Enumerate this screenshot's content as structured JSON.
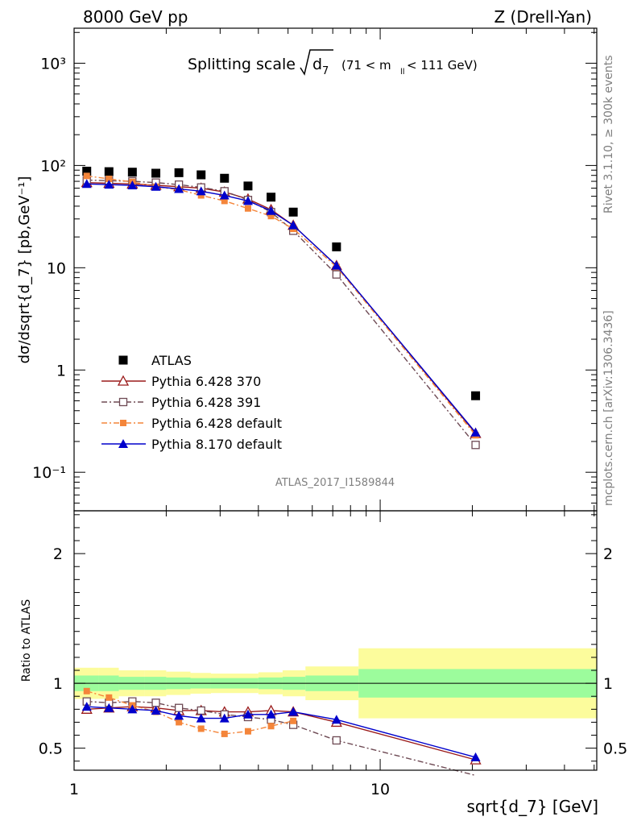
{
  "header": {
    "left": "8000 GeV pp",
    "right": "Z (Drell-Yan)",
    "title_main": "Splitting scale",
    "title_var": "d",
    "title_sub": "7",
    "title_range": "(71 < m",
    "title_range_sub": "ll",
    "title_range_end": " < 111 GeV)"
  },
  "side_texts": {
    "rivet": "Rivet 3.1.10, ≥ 300k events",
    "mcplots": "mcplots.cern.ch [arXiv:1306.3436]"
  },
  "watermark": "ATLAS_2017_I1589844",
  "colors": {
    "data": "#000000",
    "p370": "#9a1a1a",
    "p391": "#6e4a54",
    "pdef": "#f4853a",
    "p8": "#0000cc",
    "band_inner": "#9cfc9c",
    "band_outer": "#fcfc9c"
  },
  "chart_data": [
    {
      "type": "scatter",
      "panel": "main",
      "ylabel": "dσ/dsqrt{d_7} [pb,GeV⁻¹]",
      "yscale": "log",
      "xscale": "log",
      "xlim": [
        1,
        51
      ],
      "ylim": [
        0.042,
        2200
      ],
      "y_ticks": [
        "10⁻¹",
        "1",
        "10",
        "10²",
        "10³"
      ],
      "x": [
        1.1,
        1.3,
        1.55,
        1.85,
        2.2,
        2.6,
        3.1,
        3.7,
        4.4,
        5.2,
        7.2,
        20.5
      ],
      "series": [
        {
          "name": "ATLAS",
          "marker": "square-filled",
          "values": [
            88,
            87,
            86,
            84,
            85,
            81,
            75,
            63,
            49,
            35,
            16,
            0.56
          ]
        },
        {
          "name": "Pythia 6.428 370",
          "marker": "triangle-open",
          "values": [
            68,
            67,
            66,
            64,
            62,
            60,
            55,
            47,
            37,
            26,
            10.5,
            0.24
          ]
        },
        {
          "name": "Pythia 6.428 391",
          "marker": "square-open",
          "values": [
            72,
            71,
            70,
            68,
            65,
            61,
            56,
            46,
            35,
            23,
            8.6,
            0.185
          ]
        },
        {
          "name": "Pythia 6.428 default",
          "marker": "square-filled-small",
          "values": [
            79,
            74,
            69,
            62,
            58,
            51,
            45,
            38,
            32,
            24,
            10.2,
            0.23
          ]
        },
        {
          "name": "Pythia 8.170 default",
          "marker": "triangle-filled",
          "values": [
            66,
            65,
            64,
            62,
            59,
            56,
            51,
            45,
            36,
            26,
            10.5,
            0.245
          ]
        }
      ]
    },
    {
      "type": "line",
      "panel": "ratio",
      "ylabel": "Ratio to ATLAS",
      "xlabel": "sqrt{d_7} [GeV]",
      "xscale": "log",
      "xlim": [
        1,
        51
      ],
      "ylim": [
        0.33,
        2.33
      ],
      "y_ticks": [
        "0.5",
        "1",
        "2"
      ],
      "x_ticks": [
        "1",
        "10"
      ],
      "x": [
        1.1,
        1.3,
        1.55,
        1.85,
        2.2,
        2.6,
        3.1,
        3.7,
        4.4,
        5.2,
        7.2,
        20.5
      ],
      "series": [
        {
          "name": "Pythia 6.428 370",
          "values": [
            0.8,
            0.81,
            0.82,
            0.81,
            0.79,
            0.79,
            0.78,
            0.78,
            0.79,
            0.78,
            0.7,
            0.41
          ]
        },
        {
          "name": "Pythia 6.428 391",
          "values": [
            0.86,
            0.85,
            0.86,
            0.85,
            0.81,
            0.79,
            0.76,
            0.74,
            0.72,
            0.68,
            0.56,
            0.29
          ]
        },
        {
          "name": "Pythia 6.428 default",
          "values": [
            0.94,
            0.89,
            0.83,
            0.78,
            0.7,
            0.65,
            0.61,
            0.63,
            0.67,
            0.71,
            null,
            null
          ]
        },
        {
          "name": "Pythia 8.170 default",
          "values": [
            0.82,
            0.81,
            0.8,
            0.79,
            0.75,
            0.73,
            0.73,
            0.76,
            0.76,
            0.78,
            0.72,
            0.43
          ]
        }
      ],
      "uncertainty_bands": {
        "bin_edges": [
          1,
          1.2,
          1.4,
          1.7,
          2,
          2.4,
          2.8,
          3.4,
          4,
          4.8,
          5.7,
          8.5,
          51
        ],
        "inner": [
          0.06,
          0.06,
          0.05,
          0.05,
          0.045,
          0.04,
          0.04,
          0.04,
          0.045,
          0.05,
          0.06,
          0.11
        ],
        "outer": [
          0.12,
          0.12,
          0.1,
          0.1,
          0.09,
          0.08,
          0.075,
          0.075,
          0.085,
          0.1,
          0.13,
          0.27
        ]
      }
    }
  ]
}
